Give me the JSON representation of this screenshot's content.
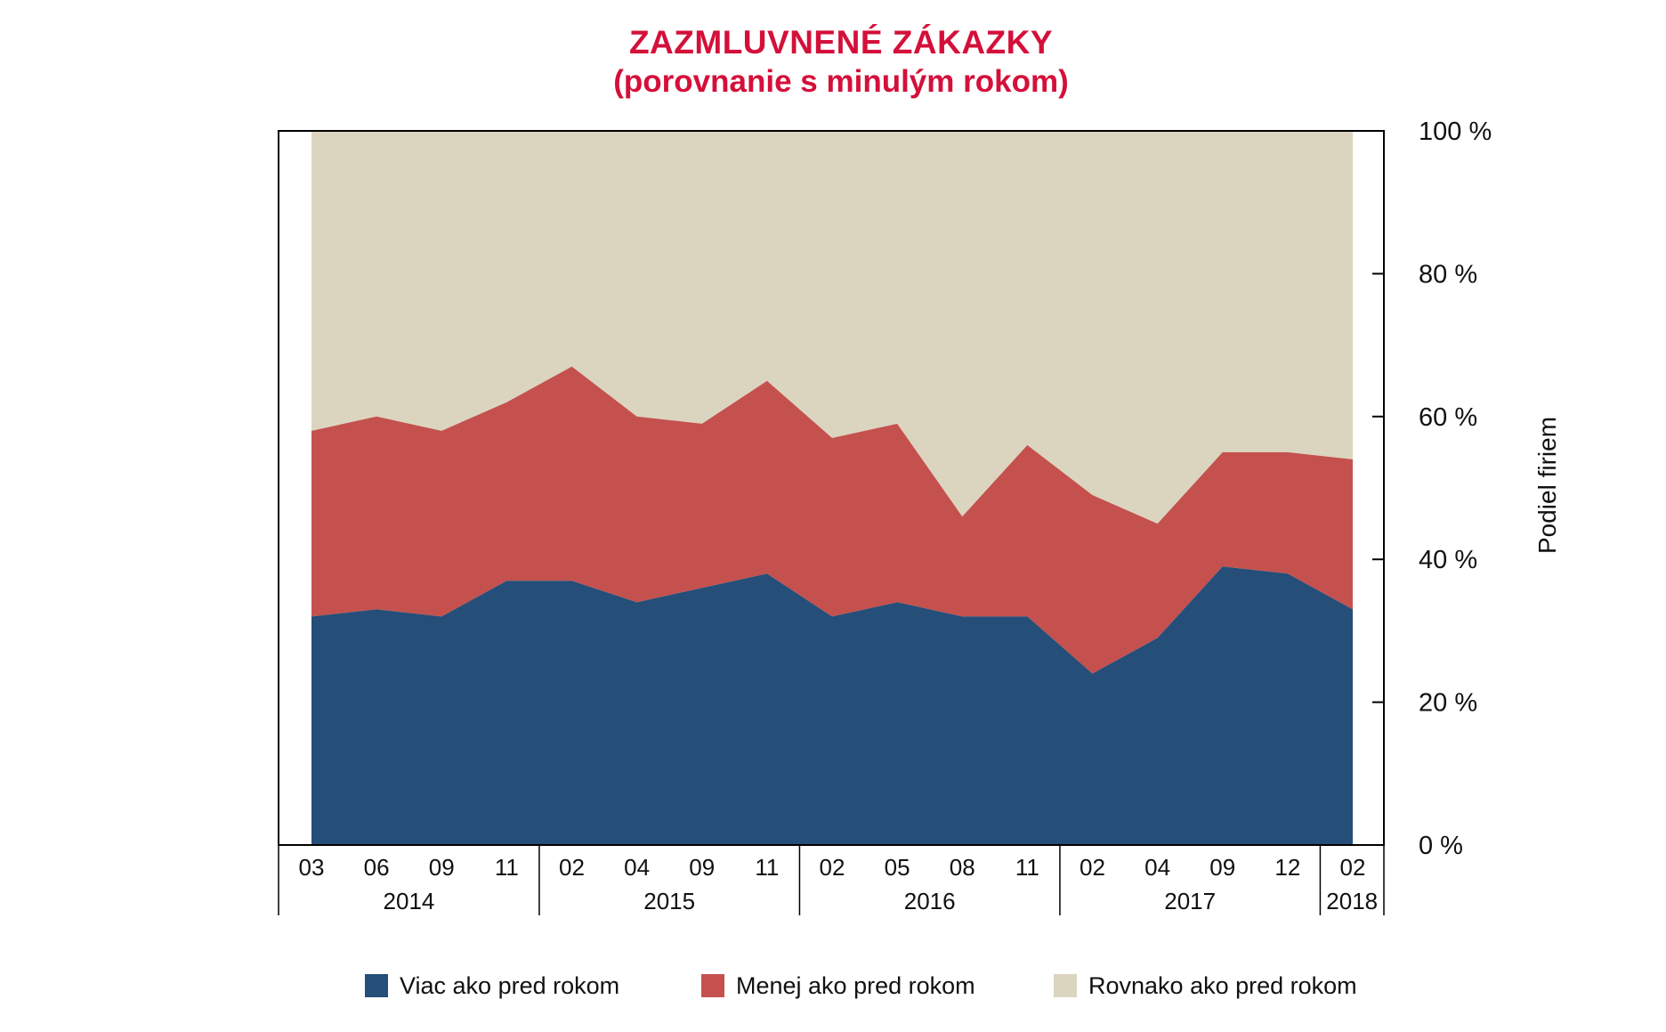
{
  "title": {
    "line1": "ZAZMLUVNENÉ ZÁKAZKY",
    "line2": "(porovnanie s minulým rokom)",
    "color": "#d4103a"
  },
  "chart_data": {
    "type": "area",
    "stacked": true,
    "ylim": [
      0,
      100
    ],
    "grid": false,
    "categories": [
      "03",
      "06",
      "09",
      "11",
      "02",
      "04",
      "09",
      "11",
      "02",
      "05",
      "08",
      "11",
      "02",
      "04",
      "09",
      "12",
      "02"
    ],
    "year_groups": [
      {
        "year": "2014",
        "count": 4
      },
      {
        "year": "2015",
        "count": 4
      },
      {
        "year": "2016",
        "count": 4
      },
      {
        "year": "2017",
        "count": 4
      },
      {
        "year": "2018",
        "count": 1
      }
    ],
    "series": [
      {
        "name": "Viac ako pred rokom",
        "color": "#254e79",
        "values": [
          32,
          33,
          32,
          37,
          37,
          34,
          36,
          38,
          32,
          34,
          32,
          32,
          24,
          29,
          39,
          38,
          33
        ]
      },
      {
        "name": "Menej ako pred rokom",
        "color": "#c4514e",
        "values": [
          26,
          27,
          26,
          25,
          30,
          26,
          23,
          27,
          25,
          25,
          14,
          24,
          25,
          16,
          16,
          17,
          21
        ]
      },
      {
        "name": "Rovnako ako pred rokom",
        "color": "#dbd5c0",
        "values": [
          42,
          40,
          42,
          38,
          33,
          40,
          41,
          35,
          43,
          41,
          54,
          44,
          51,
          55,
          45,
          45,
          46
        ]
      }
    ],
    "y_tick_labels": [
      "0 %",
      "20 %",
      "40 %",
      "60 %",
      "80 %",
      "100 %"
    ],
    "y_axis_label": "Podiel firiem",
    "axis_color": "#000000",
    "label_color": "#111111",
    "legend_position": "bottom"
  },
  "legend": {
    "items": [
      {
        "label": "Viac ako pred rokom",
        "color": "#254e79"
      },
      {
        "label": "Menej ako pred rokom",
        "color": "#c4514e"
      },
      {
        "label": "Rovnako ako pred rokom",
        "color": "#dbd5c0"
      }
    ]
  }
}
